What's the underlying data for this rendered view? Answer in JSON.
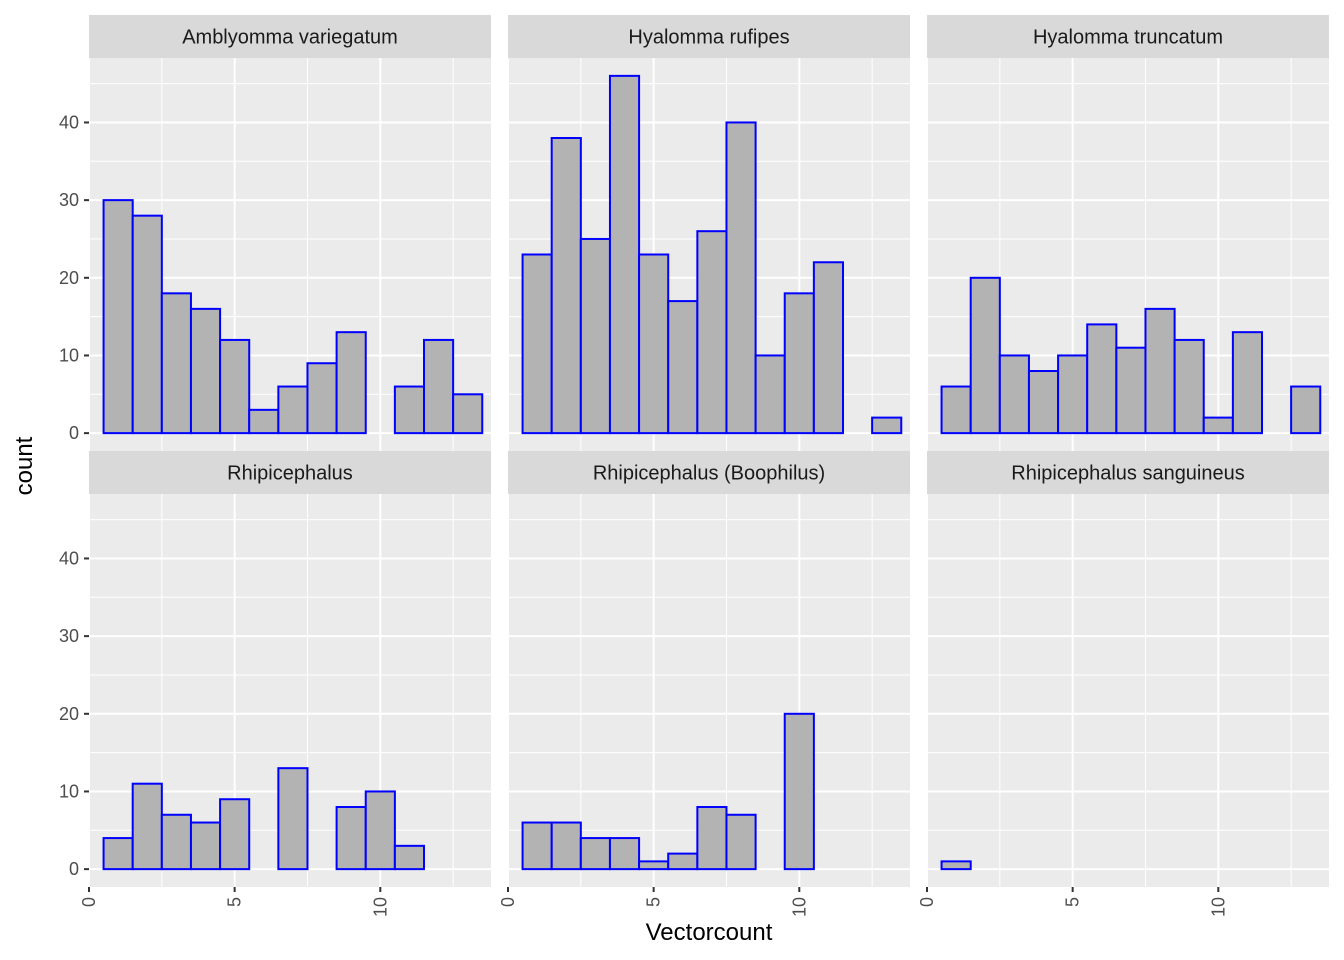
{
  "chart_data": {
    "type": "bar",
    "subtype": "faceted-histogram",
    "xlabel": "Vectorcount",
    "ylabel": "count",
    "xlim": [
      0,
      13.8
    ],
    "ylim": [
      -2.3,
      48.3
    ],
    "x_ticks": [
      0,
      5,
      10
    ],
    "y_ticks": [
      0,
      10,
      20,
      30,
      40
    ],
    "grid": true,
    "bin_width": 1,
    "colors": {
      "bar_fill": "#b3b3b3",
      "bar_outline": "#0000ff",
      "panel_bg": "#ebebeb",
      "strip_bg": "#d9d9d9",
      "grid": "#ffffff"
    },
    "facets": [
      {
        "name": "Amblyomma variegatum",
        "bins": [
          {
            "x": 1,
            "count": 30
          },
          {
            "x": 2,
            "count": 28
          },
          {
            "x": 3,
            "count": 18
          },
          {
            "x": 4,
            "count": 16
          },
          {
            "x": 5,
            "count": 12
          },
          {
            "x": 6,
            "count": 3
          },
          {
            "x": 7,
            "count": 6
          },
          {
            "x": 8,
            "count": 9
          },
          {
            "x": 9,
            "count": 13
          },
          {
            "x": 11,
            "count": 6
          },
          {
            "x": 12,
            "count": 12
          },
          {
            "x": 13,
            "count": 5
          }
        ]
      },
      {
        "name": "Hyalomma rufipes",
        "bins": [
          {
            "x": 1,
            "count": 23
          },
          {
            "x": 2,
            "count": 38
          },
          {
            "x": 3,
            "count": 25
          },
          {
            "x": 4,
            "count": 46
          },
          {
            "x": 5,
            "count": 23
          },
          {
            "x": 6,
            "count": 17
          },
          {
            "x": 7,
            "count": 26
          },
          {
            "x": 8,
            "count": 40
          },
          {
            "x": 9,
            "count": 10
          },
          {
            "x": 10,
            "count": 18
          },
          {
            "x": 11,
            "count": 22
          },
          {
            "x": 13,
            "count": 2
          }
        ]
      },
      {
        "name": "Hyalomma truncatum",
        "bins": [
          {
            "x": 1,
            "count": 6
          },
          {
            "x": 2,
            "count": 20
          },
          {
            "x": 3,
            "count": 10
          },
          {
            "x": 4,
            "count": 8
          },
          {
            "x": 5,
            "count": 10
          },
          {
            "x": 6,
            "count": 14
          },
          {
            "x": 7,
            "count": 11
          },
          {
            "x": 8,
            "count": 16
          },
          {
            "x": 9,
            "count": 12
          },
          {
            "x": 10,
            "count": 2
          },
          {
            "x": 11,
            "count": 13
          },
          {
            "x": 13,
            "count": 6
          }
        ]
      },
      {
        "name": "Rhipicephalus",
        "bins": [
          {
            "x": 1,
            "count": 4
          },
          {
            "x": 2,
            "count": 11
          },
          {
            "x": 3,
            "count": 7
          },
          {
            "x": 4,
            "count": 6
          },
          {
            "x": 5,
            "count": 9
          },
          {
            "x": 7,
            "count": 13
          },
          {
            "x": 9,
            "count": 8
          },
          {
            "x": 10,
            "count": 10
          },
          {
            "x": 11,
            "count": 3
          }
        ]
      },
      {
        "name": "Rhipicephalus (Boophilus)",
        "bins": [
          {
            "x": 1,
            "count": 6
          },
          {
            "x": 2,
            "count": 6
          },
          {
            "x": 3,
            "count": 4
          },
          {
            "x": 4,
            "count": 4
          },
          {
            "x": 5,
            "count": 1
          },
          {
            "x": 6,
            "count": 2
          },
          {
            "x": 7,
            "count": 8
          },
          {
            "x": 8,
            "count": 7
          },
          {
            "x": 10,
            "count": 20
          }
        ]
      },
      {
        "name": "Rhipicephalus sanguineus",
        "bins": [
          {
            "x": 1,
            "count": 1
          }
        ]
      }
    ]
  }
}
